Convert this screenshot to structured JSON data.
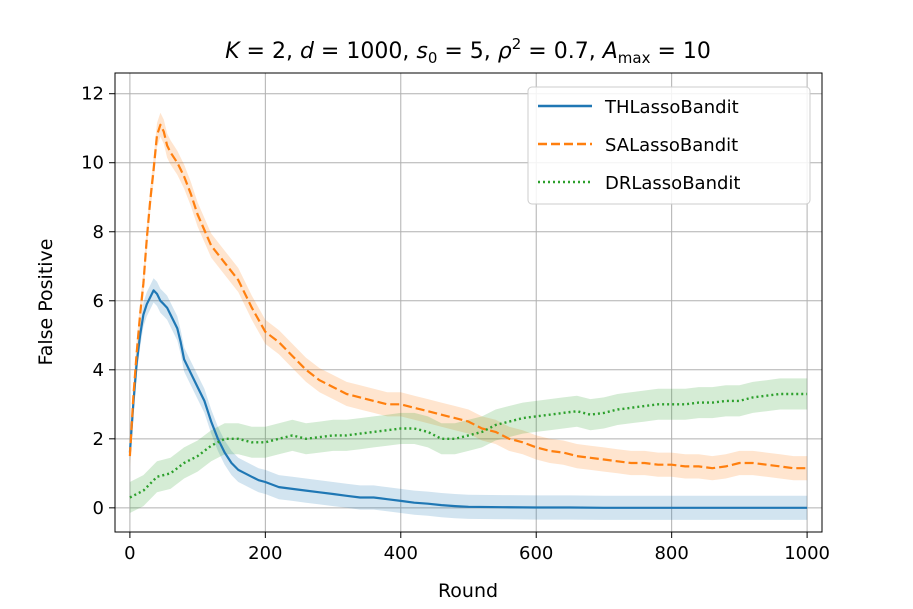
{
  "chart_data": {
    "type": "line",
    "title": "K = 2, d = 1000, s₀ = 5, ρ² = 0.7, A_max = 10",
    "title_parts": {
      "K": "2",
      "d": "1000",
      "s0": "5",
      "rho2": "0.7",
      "Amax": "10"
    },
    "xlabel": "Round",
    "ylabel": "False Positive",
    "xlim": [
      -22,
      1022
    ],
    "ylim": [
      -0.7,
      12.6
    ],
    "xticks": [
      0,
      200,
      400,
      600,
      800,
      1000
    ],
    "yticks": [
      0,
      2,
      4,
      6,
      8,
      10,
      12
    ],
    "grid": true,
    "legend_position": "upper-right",
    "series": [
      {
        "name": "THLassoBandit",
        "color": "#1f77b4",
        "dash": "solid",
        "x": [
          0,
          5,
          10,
          15,
          20,
          25,
          30,
          35,
          40,
          45,
          50,
          55,
          60,
          65,
          70,
          75,
          80,
          90,
          100,
          110,
          120,
          130,
          140,
          150,
          160,
          170,
          180,
          190,
          200,
          220,
          240,
          260,
          280,
          300,
          320,
          340,
          360,
          380,
          400,
          420,
          440,
          460,
          480,
          500,
          550,
          600,
          650,
          700,
          750,
          800,
          850,
          900,
          950,
          1000
        ],
        "y": [
          1.6,
          3.0,
          4.2,
          5.0,
          5.6,
          5.9,
          6.1,
          6.3,
          6.2,
          6.0,
          5.9,
          5.8,
          5.6,
          5.4,
          5.2,
          4.8,
          4.3,
          3.9,
          3.5,
          3.1,
          2.5,
          2.0,
          1.6,
          1.3,
          1.1,
          1.0,
          0.9,
          0.8,
          0.75,
          0.6,
          0.55,
          0.5,
          0.45,
          0.4,
          0.35,
          0.3,
          0.3,
          0.25,
          0.2,
          0.15,
          0.12,
          0.08,
          0.05,
          0.03,
          0.02,
          0.01,
          0.01,
          0.0,
          0.0,
          0.0,
          0.0,
          0.0,
          0.0,
          0.0
        ],
        "band": 0.35
      },
      {
        "name": "SALassoBandit",
        "color": "#ff7f0e",
        "dash": "dashed",
        "x": [
          0,
          5,
          10,
          15,
          20,
          25,
          30,
          35,
          40,
          45,
          50,
          55,
          60,
          70,
          80,
          90,
          100,
          120,
          140,
          160,
          180,
          200,
          220,
          240,
          260,
          280,
          300,
          320,
          340,
          360,
          380,
          400,
          420,
          440,
          460,
          480,
          500,
          520,
          540,
          560,
          580,
          600,
          620,
          640,
          660,
          680,
          700,
          720,
          740,
          760,
          780,
          800,
          820,
          840,
          860,
          880,
          900,
          920,
          940,
          960,
          980,
          1000
        ],
        "y": [
          1.5,
          3.2,
          4.5,
          5.6,
          6.5,
          7.8,
          8.9,
          9.8,
          10.8,
          11.1,
          10.9,
          10.5,
          10.3,
          10.0,
          9.6,
          9.1,
          8.5,
          7.6,
          7.1,
          6.6,
          5.8,
          5.1,
          4.8,
          4.4,
          4.0,
          3.7,
          3.5,
          3.3,
          3.2,
          3.1,
          3.0,
          3.0,
          2.9,
          2.8,
          2.7,
          2.6,
          2.5,
          2.3,
          2.2,
          2.0,
          1.9,
          1.75,
          1.65,
          1.6,
          1.5,
          1.45,
          1.4,
          1.35,
          1.3,
          1.3,
          1.25,
          1.25,
          1.2,
          1.2,
          1.15,
          1.2,
          1.3,
          1.3,
          1.25,
          1.2,
          1.15,
          1.15
        ],
        "band": 0.35
      },
      {
        "name": "DRLassoBandit",
        "color": "#2ca02c",
        "dash": "dotted",
        "x": [
          0,
          20,
          40,
          60,
          80,
          100,
          120,
          140,
          160,
          180,
          200,
          220,
          240,
          260,
          280,
          300,
          320,
          340,
          360,
          380,
          400,
          420,
          440,
          460,
          480,
          500,
          520,
          540,
          560,
          580,
          600,
          620,
          640,
          660,
          680,
          700,
          720,
          740,
          760,
          780,
          800,
          820,
          840,
          860,
          880,
          900,
          920,
          940,
          960,
          980,
          1000
        ],
        "y": [
          0.3,
          0.5,
          0.9,
          1.0,
          1.3,
          1.5,
          1.8,
          2.0,
          2.0,
          1.9,
          1.9,
          2.0,
          2.1,
          2.0,
          2.05,
          2.1,
          2.1,
          2.15,
          2.2,
          2.25,
          2.3,
          2.3,
          2.2,
          2.0,
          2.0,
          2.1,
          2.2,
          2.4,
          2.5,
          2.6,
          2.65,
          2.7,
          2.75,
          2.8,
          2.7,
          2.75,
          2.85,
          2.9,
          2.95,
          3.0,
          3.0,
          3.0,
          3.05,
          3.05,
          3.1,
          3.1,
          3.2,
          3.25,
          3.3,
          3.3,
          3.3
        ],
        "band": 0.45
      }
    ]
  }
}
